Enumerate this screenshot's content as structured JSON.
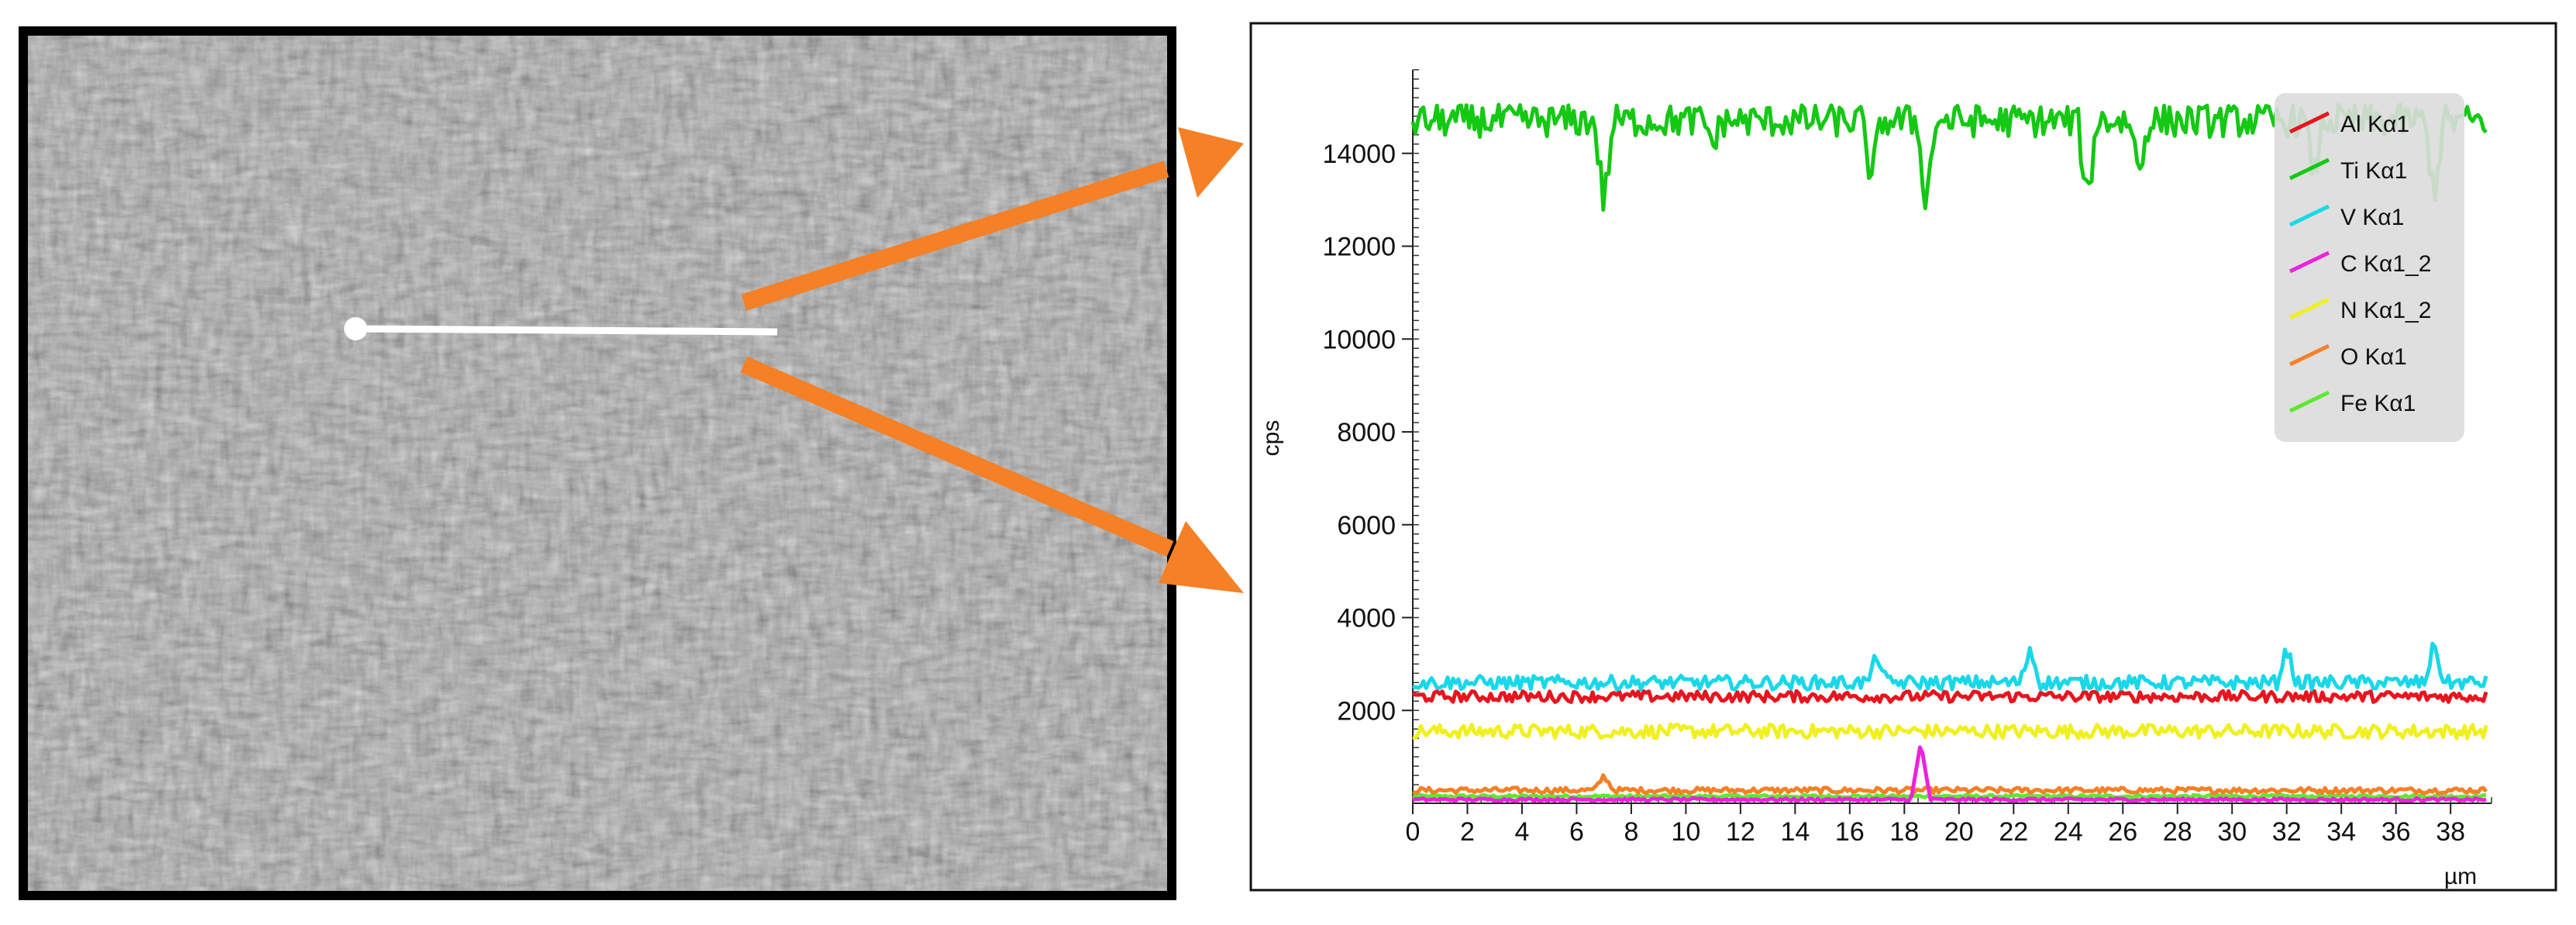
{
  "figure": {
    "sem_image": {
      "label": "micrograph",
      "scan_line": "line-scan"
    },
    "arrows": {
      "color": "#f58025"
    }
  },
  "chart_data": {
    "type": "line",
    "title": "",
    "xlabel": "µm",
    "ylabel": "cps",
    "xlim": [
      0,
      39.5
    ],
    "ylim": [
      0,
      15800
    ],
    "xticks": [
      0,
      2,
      4,
      6,
      8,
      10,
      12,
      14,
      16,
      18,
      20,
      22,
      24,
      26,
      28,
      30,
      32,
      34,
      36,
      38
    ],
    "yticks": [
      2000,
      4000,
      6000,
      8000,
      10000,
      12000,
      14000
    ],
    "grid": false,
    "legend_position": "top-right",
    "series": [
      {
        "name": "Al Kα1",
        "color": "#e8141e",
        "base": 2300,
        "amp": 120
      },
      {
        "name": "Ti Kα1",
        "color": "#14c814",
        "base": 14700,
        "amp": 350,
        "dips": [
          [
            7,
            12900
          ],
          [
            11,
            14200
          ],
          [
            16.8,
            13400
          ],
          [
            18.8,
            12900
          ],
          [
            24.7,
            12900
          ],
          [
            26.6,
            13600
          ],
          [
            33,
            13500
          ],
          [
            37.4,
            13100
          ]
        ]
      },
      {
        "name": "V Kα1",
        "color": "#18d8e8",
        "base": 2600,
        "amp": 150,
        "peaks": [
          [
            17,
            3200
          ],
          [
            22.6,
            3350
          ],
          [
            32,
            3350
          ],
          [
            37.4,
            3450
          ]
        ]
      },
      {
        "name": "C Kα1_2",
        "color": "#ee22dd",
        "base": 80,
        "amp": 30,
        "peaks": [
          [
            18.6,
            1300
          ]
        ]
      },
      {
        "name": "N Kα1_2",
        "color": "#f0f020",
        "base": 1550,
        "amp": 150
      },
      {
        "name": "O Kα1",
        "color": "#f58025",
        "base": 280,
        "amp": 60,
        "peaks": [
          [
            7,
            600
          ]
        ]
      },
      {
        "name": "Fe Kα1",
        "color": "#5ee830",
        "base": 150,
        "amp": 30
      }
    ]
  }
}
